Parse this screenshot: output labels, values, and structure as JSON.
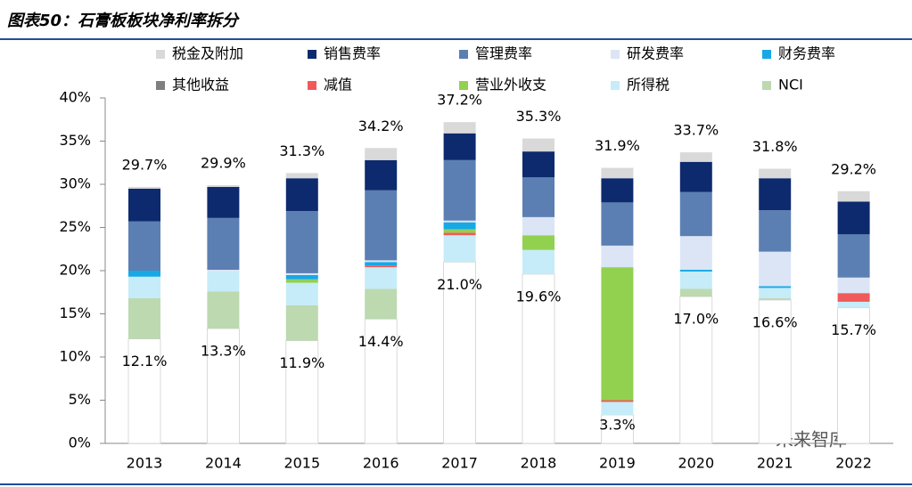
{
  "chart_data": {
    "type": "bar",
    "stacked": true,
    "title": "图表50：石膏板板块净利率拆分",
    "categories": [
      "2013",
      "2014",
      "2015",
      "2016",
      "2017",
      "2018",
      "2019",
      "2020",
      "2021",
      "2022"
    ],
    "ylim": [
      0,
      40
    ],
    "yticks": [
      {
        "value": 0,
        "label": "0%"
      },
      {
        "value": 5,
        "label": "5%"
      },
      {
        "value": 10,
        "label": "10%"
      },
      {
        "value": 15,
        "label": "15%"
      },
      {
        "value": 20,
        "label": "20%"
      },
      {
        "value": 25,
        "label": "25%"
      },
      {
        "value": 30,
        "label": "30%"
      },
      {
        "value": 35,
        "label": "35%"
      },
      {
        "value": 40,
        "label": "40%"
      }
    ],
    "series": [
      {
        "color": "#ffffff",
        "values": [
          12.1,
          13.3,
          11.9,
          14.4,
          21.0,
          19.6,
          3.3,
          17.0,
          16.6,
          15.7
        ],
        "value_labels": [
          "12.1%",
          "13.3%",
          "11.9%",
          "14.4%",
          "21.0%",
          "19.6%",
          "3.3%",
          "17.0%",
          "16.6%",
          "15.7%"
        ]
      },
      {
        "name": "NCI",
        "color": "#bcd9b0",
        "values": [
          4.7,
          4.3,
          4.1,
          3.5,
          null,
          null,
          null,
          0.9,
          0.2,
          null
        ]
      },
      {
        "name": "所得税",
        "color": "#c5ecf8",
        "values": [
          2.5,
          2.3,
          2.6,
          2.5,
          3.1,
          2.8,
          1.5,
          2.0,
          1.2,
          0.7
        ]
      },
      {
        "name": "减值",
        "color": "#f05a5a",
        "values": [
          null,
          null,
          null,
          0.2,
          0.3,
          null,
          0.2,
          null,
          null,
          1.0
        ]
      },
      {
        "name": "营业外收支",
        "color": "#92d050",
        "values": [
          null,
          null,
          0.4,
          null,
          0.4,
          1.7,
          15.4,
          null,
          null,
          null
        ]
      },
      {
        "name": "其他收益",
        "color": "#7f7f7f",
        "values": [
          null,
          null,
          null,
          null,
          null,
          null,
          null,
          null,
          null,
          null
        ]
      },
      {
        "name": "财务费率",
        "color": "#17a8e6",
        "values": [
          0.7,
          null,
          0.5,
          0.4,
          0.8,
          null,
          null,
          0.2,
          0.2,
          null
        ]
      },
      {
        "name": "研发费率",
        "color": "#dbe5f5",
        "values": [
          null,
          0.2,
          0.2,
          0.2,
          0.2,
          2.1,
          2.5,
          3.9,
          4.0,
          1.8
        ]
      },
      {
        "name": "管理费率",
        "color": "#5b7fb2",
        "values": [
          5.7,
          6.0,
          7.2,
          8.1,
          7.0,
          4.6,
          5.0,
          5.1,
          4.8,
          5.0
        ]
      },
      {
        "name": "销售费率",
        "color": "#0e2a6e",
        "values": [
          3.8,
          3.6,
          3.8,
          3.5,
          3.1,
          3.0,
          2.8,
          3.5,
          3.7,
          3.8
        ]
      },
      {
        "name": "税金及附加",
        "color": "#d9d9d9",
        "values": [
          0.2,
          0.2,
          0.6,
          1.4,
          1.3,
          1.5,
          1.2,
          1.1,
          1.1,
          1.2
        ]
      }
    ],
    "totals": [
      29.7,
      29.9,
      31.3,
      34.2,
      37.2,
      35.3,
      31.9,
      33.7,
      31.8,
      29.2
    ],
    "total_labels": [
      "29.7%",
      "29.9%",
      "31.3%",
      "34.2%",
      "37.2%",
      "35.3%",
      "31.9%",
      "33.7%",
      "31.8%",
      "29.2%"
    ],
    "legend_order": [
      10,
      9,
      8,
      7,
      6,
      5,
      3,
      4,
      2,
      1
    ]
  },
  "watermark": "未来智库"
}
